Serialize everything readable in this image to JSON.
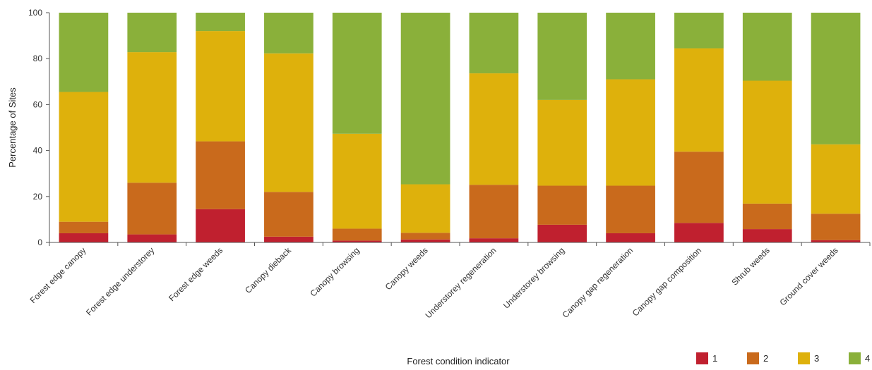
{
  "chart_data": {
    "type": "bar",
    "stacked": true,
    "xlabel": "Forest condition indicator",
    "ylabel": "Percentage of Sites",
    "ylim": [
      0,
      100
    ],
    "yticks": [
      0,
      20,
      40,
      60,
      80,
      100
    ],
    "grid": false,
    "legend_position": "bottom-right",
    "categories": [
      "Forest edge canopy",
      "Forest edge understorey",
      "Forest edge weeds",
      "Canopy dieback",
      "Canopy browsing",
      "Canopy weeds",
      "Understorey regeneration",
      "Understorey browsing",
      "Canopy gap regeneration",
      "Canopy gap composition",
      "Shrub weeds",
      "Ground cover weeds"
    ],
    "series": [
      {
        "name": "1",
        "color": "#c0202f",
        "values": [
          4,
          3.5,
          14.5,
          2.5,
          0.8,
          1.3,
          1.8,
          7.7,
          4,
          8.5,
          5.8,
          1
        ]
      },
      {
        "name": "2",
        "color": "#c96a1c",
        "values": [
          5,
          22.5,
          29.5,
          19.5,
          5.2,
          2.9,
          23.3,
          17,
          20.7,
          31,
          11.1,
          11.5
        ]
      },
      {
        "name": "3",
        "color": "#deb10c",
        "values": [
          56.5,
          56.8,
          48,
          60.3,
          41.3,
          21.1,
          48.5,
          37.3,
          46.3,
          45,
          53.5,
          30.2
        ]
      },
      {
        "name": "4",
        "color": "#8ab03a",
        "values": [
          34.5,
          17.2,
          8,
          17.7,
          52.7,
          74.7,
          26.4,
          38,
          29,
          15.5,
          29.6,
          57.3
        ]
      }
    ]
  }
}
